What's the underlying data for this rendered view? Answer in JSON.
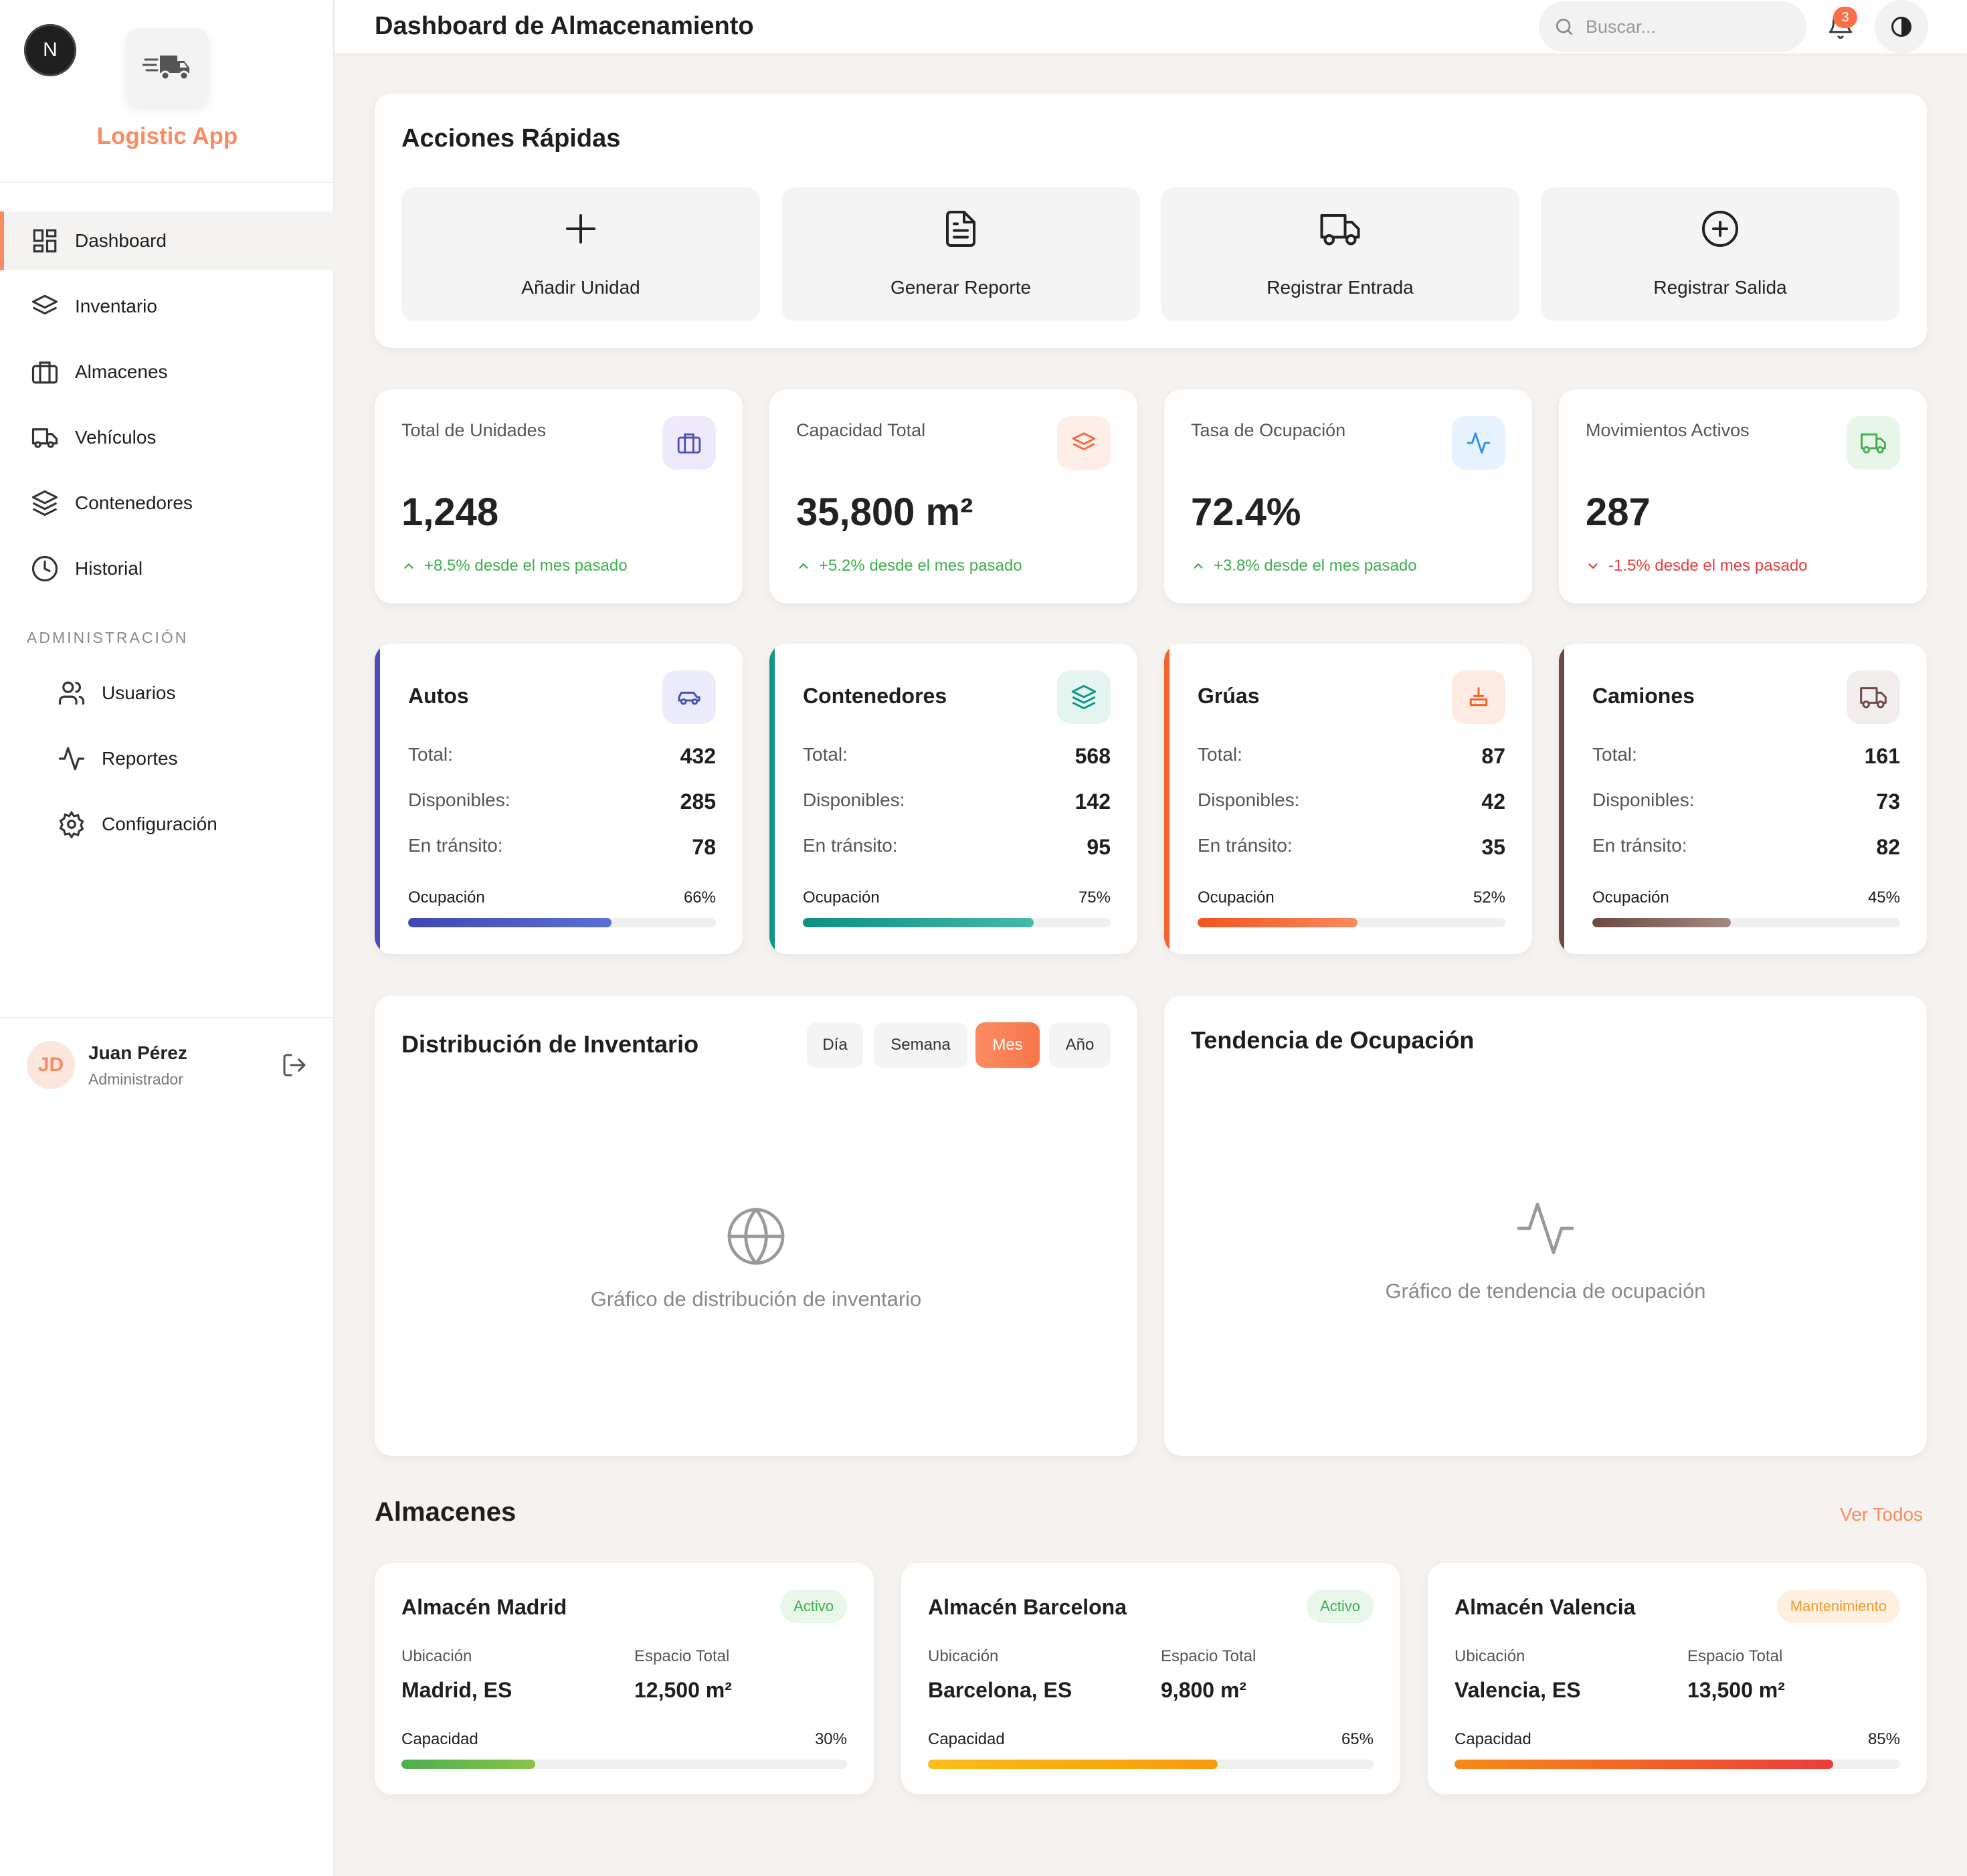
{
  "sidebar": {
    "badge": "N",
    "app_name": "Logistic App",
    "nav": [
      {
        "label": "Dashboard",
        "icon": "dashboard-icon",
        "active": true
      },
      {
        "label": "Inventario",
        "icon": "layers-icon"
      },
      {
        "label": "Almacenes",
        "icon": "briefcase-icon"
      },
      {
        "label": "Vehículos",
        "icon": "truck-icon"
      },
      {
        "label": "Contenedores",
        "icon": "stack-icon"
      },
      {
        "label": "Historial",
        "icon": "clock-icon"
      }
    ],
    "admin_section": "ADMINISTRACIÓN",
    "admin_nav": [
      {
        "label": "Usuarios",
        "icon": "users-icon"
      },
      {
        "label": "Reportes",
        "icon": "activity-icon"
      },
      {
        "label": "Configuración",
        "icon": "gear-icon"
      }
    ],
    "user": {
      "initials": "JD",
      "name": "Juan Pérez",
      "role": "Administrador"
    }
  },
  "topbar": {
    "title": "Dashboard de Almacenamiento",
    "search_placeholder": "Buscar...",
    "notifications": "3"
  },
  "quick_actions": {
    "title": "Acciones Rápidas",
    "items": [
      {
        "label": "Añadir Unidad",
        "icon": "plus-icon"
      },
      {
        "label": "Generar Reporte",
        "icon": "document-icon"
      },
      {
        "label": "Registrar Entrada",
        "icon": "truck-icon"
      },
      {
        "label": "Registrar Salida",
        "icon": "plus-circle-icon"
      }
    ]
  },
  "stats": [
    {
      "label": "Total de Unidades",
      "value": "1,248",
      "change": "+8.5% desde el mes pasado",
      "trend": "up",
      "icon": "briefcase-icon",
      "color": "#4b4fb8"
    },
    {
      "label": "Capacidad Total",
      "value": "35,800 m²",
      "change": "+5.2% desde el mes pasado",
      "trend": "up",
      "icon": "layers-icon",
      "color": "#f26b3d"
    },
    {
      "label": "Tasa de Ocupación",
      "value": "72.4%",
      "change": "+3.8% desde el mes pasado",
      "trend": "up",
      "icon": "activity-icon",
      "color": "#2f8fe6"
    },
    {
      "label": "Movimientos Activos",
      "value": "287",
      "change": "-1.5% desde el mes pasado",
      "trend": "down",
      "icon": "truck-icon",
      "color": "#3fae4e"
    }
  ],
  "categories": [
    {
      "title": "Autos",
      "icon": "car-icon",
      "total_label": "Total:",
      "total": "432",
      "available_label": "Disponibles:",
      "available": "285",
      "transit_label": "En tránsito:",
      "transit": "78",
      "occupancy_label": "Ocupación",
      "occupancy": "66%",
      "occupancy_value": 66,
      "color": "#4650b8"
    },
    {
      "title": "Contenedores",
      "icon": "stack-icon",
      "total_label": "Total:",
      "total": "568",
      "available_label": "Disponibles:",
      "available": "142",
      "transit_label": "En tránsito:",
      "transit": "95",
      "occupancy_label": "Ocupación",
      "occupancy": "75%",
      "occupancy_value": 75,
      "color": "#12968a"
    },
    {
      "title": "Grúas",
      "icon": "crane-icon",
      "total_label": "Total:",
      "total": "87",
      "available_label": "Disponibles:",
      "available": "42",
      "transit_label": "En tránsito:",
      "transit": "35",
      "occupancy_label": "Ocupación",
      "occupancy": "52%",
      "occupancy_value": 52,
      "color": "#f4632c"
    },
    {
      "title": "Camiones",
      "icon": "truck-icon",
      "total_label": "Total:",
      "total": "161",
      "available_label": "Disponibles:",
      "available": "73",
      "transit_label": "En tránsito:",
      "transit": "82",
      "occupancy_label": "Ocupación",
      "occupancy": "45%",
      "occupancy_value": 45,
      "color": "#6e4a42"
    }
  ],
  "distribution": {
    "title": "Distribución de Inventario",
    "periods": [
      "Día",
      "Semana",
      "Mes",
      "Año"
    ],
    "active_period": "Mes",
    "placeholder": "Gráfico de distribución de inventario"
  },
  "trend": {
    "title": "Tendencia de Ocupación",
    "placeholder": "Gráfico de tendencia de ocupación"
  },
  "warehouses": {
    "title": "Almacenes",
    "view_all": "Ver Todos",
    "items": [
      {
        "name": "Almacén Madrid",
        "status": "Activo",
        "status_type": "active",
        "location_label": "Ubicación",
        "location": "Madrid, ES",
        "space_label": "Espacio Total",
        "space": "12,500 m²",
        "capacity_label": "Capacidad",
        "capacity": "30%",
        "capacity_value": 30
      },
      {
        "name": "Almacén Barcelona",
        "status": "Activo",
        "status_type": "active",
        "location_label": "Ubicación",
        "location": "Barcelona, ES",
        "space_label": "Espacio Total",
        "space": "9,800 m²",
        "capacity_label": "Capacidad",
        "capacity": "65%",
        "capacity_value": 65
      },
      {
        "name": "Almacén Valencia",
        "status": "Mantenimiento",
        "status_type": "maintenance",
        "location_label": "Ubicación",
        "location": "Valencia, ES",
        "space_label": "Espacio Total",
        "space": "13,500 m²",
        "capacity_label": "Capacidad",
        "capacity": "85%",
        "capacity_value": 85
      }
    ]
  }
}
